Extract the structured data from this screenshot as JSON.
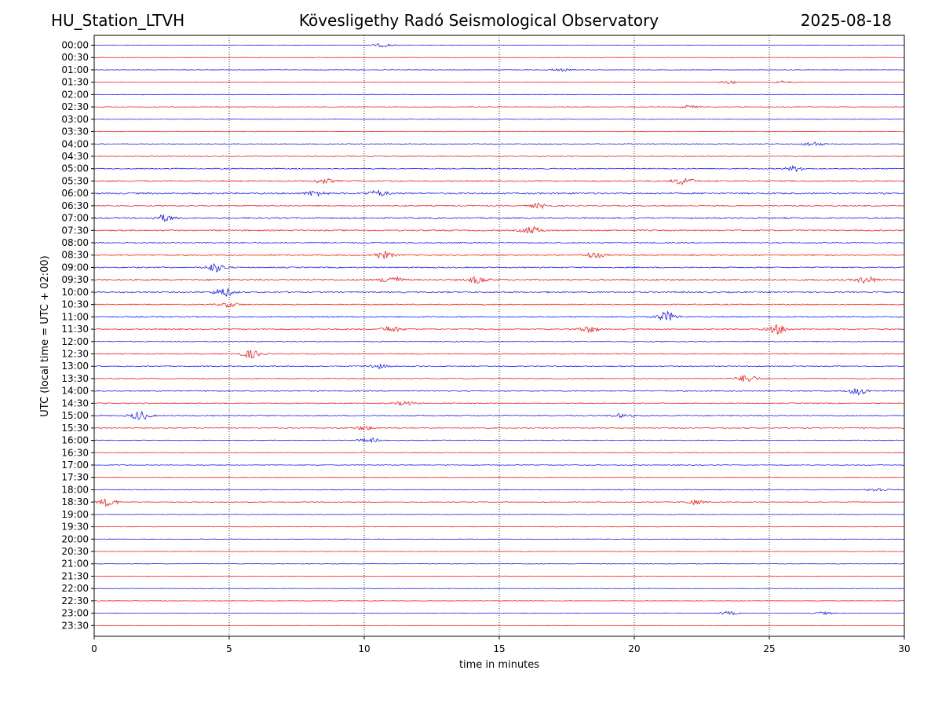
{
  "header": {
    "station": "HU_Station_LTVH",
    "observatory": "Kövesligethy Radó Seismological Observatory",
    "date": "2025-08-18"
  },
  "chart_data": {
    "type": "line",
    "subtype": "helicorder",
    "xlabel": "time in minutes",
    "ylabel": "UTC (local time = UTC + 02:00)",
    "xlim": [
      0,
      30
    ],
    "x_ticks": [
      0,
      5,
      10,
      15,
      20,
      25,
      30
    ],
    "vertical_gridlines": [
      5,
      10,
      15,
      20,
      25
    ],
    "grid_style": "dotted",
    "row_labels": [
      "00:00",
      "00:30",
      "01:00",
      "01:30",
      "02:00",
      "02:30",
      "03:00",
      "03:30",
      "04:00",
      "04:30",
      "05:00",
      "05:30",
      "06:00",
      "06:30",
      "07:00",
      "07:30",
      "08:00",
      "08:30",
      "09:00",
      "09:30",
      "10:00",
      "10:30",
      "11:00",
      "11:30",
      "12:00",
      "12:30",
      "13:00",
      "13:30",
      "14:00",
      "14:30",
      "15:00",
      "15:30",
      "16:00",
      "16:30",
      "17:00",
      "17:30",
      "18:00",
      "18:30",
      "19:00",
      "19:30",
      "20:00",
      "20:30",
      "21:00",
      "21:30",
      "22:00",
      "22:30",
      "23:00",
      "23:30"
    ],
    "trace_colors": [
      "#0000ff",
      "#ff0000"
    ],
    "color_alternation": "blue on the hour, red on the half hour",
    "row_noise_level": [
      0.25,
      0.2,
      0.25,
      0.25,
      0.35,
      0.3,
      0.25,
      0.3,
      0.45,
      0.45,
      0.6,
      0.75,
      0.9,
      0.7,
      0.8,
      0.75,
      0.7,
      0.7,
      0.65,
      0.9,
      0.9,
      0.6,
      0.7,
      0.7,
      0.55,
      0.55,
      0.55,
      0.55,
      0.6,
      0.55,
      0.55,
      0.5,
      0.45,
      0.4,
      0.4,
      0.35,
      0.45,
      0.4,
      0.3,
      0.3,
      0.25,
      0.3,
      0.25,
      0.25,
      0.2,
      0.25,
      0.25,
      0.2
    ],
    "bursts": [
      {
        "row": "00:00",
        "minute": 10.7,
        "amplitude": 0.4
      },
      {
        "row": "01:00",
        "minute": 17.3,
        "amplitude": 0.3
      },
      {
        "row": "01:30",
        "minute": 23.5,
        "amplitude": 0.35
      },
      {
        "row": "01:30",
        "minute": 25.5,
        "amplitude": 0.3
      },
      {
        "row": "02:30",
        "minute": 22.0,
        "amplitude": 0.35
      },
      {
        "row": "04:00",
        "minute": 26.6,
        "amplitude": 0.5
      },
      {
        "row": "05:00",
        "minute": 26.0,
        "amplitude": 0.6
      },
      {
        "row": "05:30",
        "minute": 8.5,
        "amplitude": 0.5
      },
      {
        "row": "05:30",
        "minute": 21.8,
        "amplitude": 0.8
      },
      {
        "row": "06:00",
        "minute": 8.2,
        "amplitude": 0.6
      },
      {
        "row": "06:00",
        "minute": 10.5,
        "amplitude": 0.6
      },
      {
        "row": "06:30",
        "minute": 16.5,
        "amplitude": 0.5
      },
      {
        "row": "07:00",
        "minute": 2.6,
        "amplitude": 0.7
      },
      {
        "row": "07:30",
        "minute": 16.2,
        "amplitude": 0.8
      },
      {
        "row": "08:30",
        "minute": 10.7,
        "amplitude": 0.8
      },
      {
        "row": "08:30",
        "minute": 18.5,
        "amplitude": 0.6
      },
      {
        "row": "09:00",
        "minute": 4.5,
        "amplitude": 1.0
      },
      {
        "row": "09:30",
        "minute": 11.0,
        "amplitude": 0.8
      },
      {
        "row": "09:30",
        "minute": 14.2,
        "amplitude": 0.7
      },
      {
        "row": "09:30",
        "minute": 28.6,
        "amplitude": 0.7
      },
      {
        "row": "10:00",
        "minute": 4.8,
        "amplitude": 0.9
      },
      {
        "row": "10:30",
        "minute": 5.0,
        "amplitude": 0.5
      },
      {
        "row": "11:00",
        "minute": 21.2,
        "amplitude": 1.1
      },
      {
        "row": "11:30",
        "minute": 11.0,
        "amplitude": 0.6
      },
      {
        "row": "11:30",
        "minute": 18.3,
        "amplitude": 0.7
      },
      {
        "row": "11:30",
        "minute": 25.3,
        "amplitude": 1.0
      },
      {
        "row": "12:30",
        "minute": 5.8,
        "amplitude": 0.9
      },
      {
        "row": "13:00",
        "minute": 10.5,
        "amplitude": 0.5
      },
      {
        "row": "13:30",
        "minute": 24.2,
        "amplitude": 0.9
      },
      {
        "row": "14:00",
        "minute": 28.3,
        "amplitude": 0.8
      },
      {
        "row": "14:30",
        "minute": 11.5,
        "amplitude": 0.4
      },
      {
        "row": "15:00",
        "minute": 1.7,
        "amplitude": 1.0
      },
      {
        "row": "15:00",
        "minute": 19.5,
        "amplitude": 0.4
      },
      {
        "row": "15:30",
        "minute": 10.0,
        "amplitude": 0.45
      },
      {
        "row": "16:00",
        "minute": 10.2,
        "amplitude": 0.5
      },
      {
        "row": "18:00",
        "minute": 29.0,
        "amplitude": 0.4
      },
      {
        "row": "18:30",
        "minute": 0.5,
        "amplitude": 0.9
      },
      {
        "row": "18:30",
        "minute": 22.2,
        "amplitude": 0.5
      },
      {
        "row": "23:00",
        "minute": 23.5,
        "amplitude": 0.4
      },
      {
        "row": "23:00",
        "minute": 27.0,
        "amplitude": 0.3
      }
    ]
  }
}
